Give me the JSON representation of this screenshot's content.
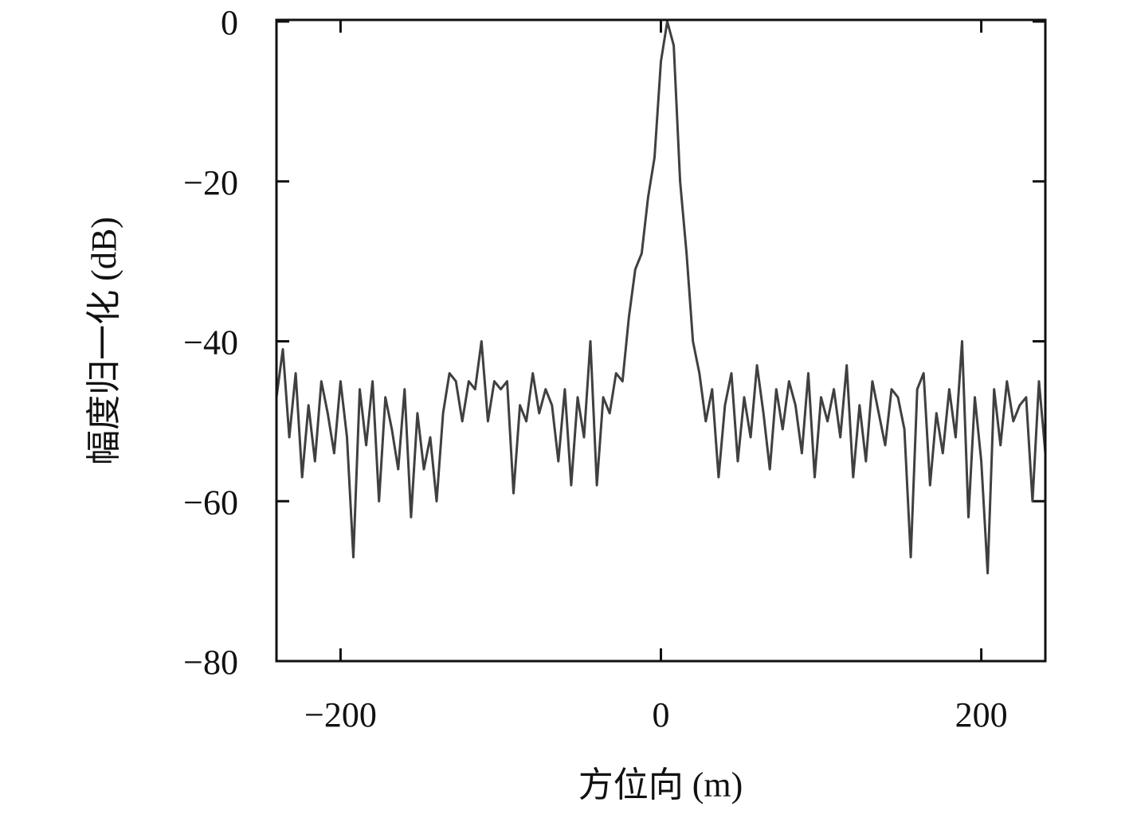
{
  "chart_data": {
    "type": "line",
    "xlabel": "方位向 (m)",
    "ylabel": "幅度归一化 (dB)",
    "x": [
      -240,
      -236,
      -232,
      -228,
      -224,
      -220,
      -216,
      -212,
      -208,
      -204,
      -200,
      -196,
      -192,
      -188,
      -184,
      -180,
      -176,
      -172,
      -168,
      -164,
      -160,
      -156,
      -152,
      -148,
      -144,
      -140,
      -136,
      -132,
      -128,
      -124,
      -120,
      -116,
      -112,
      -108,
      -104,
      -100,
      -96,
      -92,
      -88,
      -84,
      -80,
      -76,
      -72,
      -68,
      -64,
      -60,
      -56,
      -52,
      -48,
      -44,
      -40,
      -36,
      -32,
      -28,
      -24,
      -20,
      -16,
      -12,
      -8,
      -4,
      0,
      4,
      8,
      12,
      16,
      20,
      24,
      28,
      32,
      36,
      40,
      44,
      48,
      52,
      56,
      60,
      64,
      68,
      72,
      76,
      80,
      84,
      88,
      92,
      96,
      100,
      104,
      108,
      112,
      116,
      120,
      124,
      128,
      132,
      136,
      140,
      144,
      148,
      152,
      156,
      160,
      164,
      168,
      172,
      176,
      180,
      184,
      188,
      192,
      196,
      200,
      204,
      208,
      212,
      216,
      220,
      224,
      228,
      232,
      236,
      240
    ],
    "series": [
      {
        "color": "#404040",
        "values": [
          -47,
          -41,
          -52,
          -44,
          -57,
          -48,
          -55,
          -45,
          -49,
          -54,
          -45,
          -52,
          -67,
          -46,
          -53,
          -45,
          -60,
          -47,
          -51,
          -56,
          -46,
          -62,
          -49,
          -56,
          -52,
          -60,
          -49,
          -44,
          -45,
          -50,
          -45,
          -46,
          -40,
          -50,
          -45,
          -46,
          -45,
          -59,
          -48,
          -50,
          -44,
          -49,
          -46,
          -48,
          -55,
          -46,
          -58,
          -47,
          -52,
          -40,
          -58,
          -47,
          -49,
          -44,
          -45,
          -37,
          -31,
          -29,
          -22,
          -17,
          -5,
          0,
          -3,
          -20,
          -29,
          -40,
          -44,
          -50,
          -46,
          -57,
          -48,
          -44,
          -55,
          -47,
          -52,
          -43,
          -49,
          -56,
          -46,
          -51,
          -45,
          -48,
          -54,
          -44,
          -57,
          -47,
          -50,
          -46,
          -52,
          -43,
          -57,
          -48,
          -55,
          -45,
          -49,
          -53,
          -46,
          -47,
          -51,
          -67,
          -46,
          -44,
          -58,
          -49,
          -54,
          -46,
          -52,
          -40,
          -62,
          -47,
          -55,
          -69,
          -46,
          -53,
          -45,
          -50,
          -48,
          -47,
          -60,
          -45,
          -54
        ]
      }
    ],
    "xlim": [
      -240,
      240
    ],
    "ylim": [
      -80,
      0
    ],
    "xticks": [
      {
        "value": -200,
        "label": "−200"
      },
      0,
      200
    ],
    "yticks": [
      0,
      {
        "value": -20,
        "label": "−20"
      },
      {
        "value": -40,
        "label": "−40"
      },
      {
        "value": -60,
        "label": "−60"
      },
      {
        "value": -80,
        "label": "−80"
      }
    ]
  }
}
